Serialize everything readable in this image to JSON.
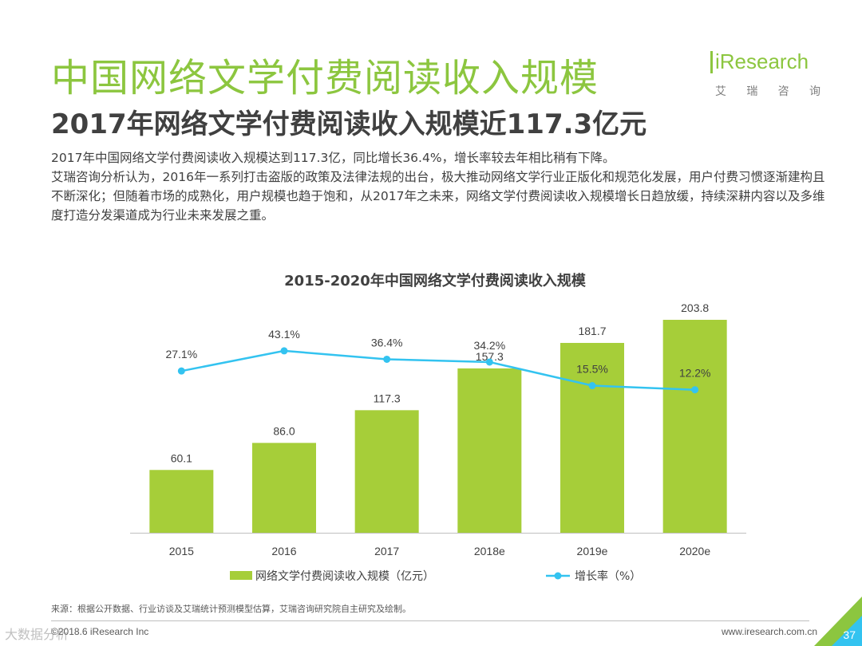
{
  "header": {
    "title": "中国网络文学付费阅读收入规模",
    "subtitle": "2017年网络文学付费阅读收入规模近117.3亿元"
  },
  "description": {
    "line1": "2017年中国网络文学付费阅读收入规模达到117.3亿，同比增长36.4%，增长率较去年相比稍有下降。",
    "line2": "艾瑞咨询分析认为，2016年一系列打击盗版的政策及法律法规的出台，极大推动网络文学行业正版化和规范化发展，用户付费习惯逐渐建构且不断深化；但随着市场的成熟化，用户规模也趋于饱和，从2017年之未来，网络文学付费阅读收入规模增长日趋放缓，持续深耕内容以及多维度打造分发渠道成为行业未来发展之重。"
  },
  "logo": {
    "brand": "iResearch",
    "chars": [
      "艾",
      "瑞",
      "咨",
      "询"
    ]
  },
  "chart_data": {
    "type": "bar",
    "title": "2015-2020年中国网络文学付费阅读收入规模",
    "categories": [
      "2015",
      "2016",
      "2017",
      "2018e",
      "2019e",
      "2020e"
    ],
    "series": [
      {
        "name": "网络文学付费阅读收入规模（亿元）",
        "type": "bar",
        "values": [
          60.1,
          86.0,
          117.3,
          157.3,
          181.7,
          203.8
        ],
        "labels": [
          "60.1",
          "86.0",
          "117.3",
          "157.3",
          "181.7",
          "203.8"
        ],
        "color": "#a6ce39"
      },
      {
        "name": "增长率（%）",
        "type": "line",
        "values": [
          27.1,
          43.1,
          36.4,
          34.2,
          15.5,
          12.2
        ],
        "labels": [
          "27.1%",
          "43.1%",
          "36.4%",
          "34.2%",
          "15.5%",
          "12.2%"
        ],
        "color": "#33c3f0"
      }
    ],
    "legend_position": "bottom",
    "grid": false
  },
  "footer": {
    "source": "来源：根据公开数据、行业访谈及艾瑞统计预测模型估算，艾瑞咨询研究院自主研究及绘制。",
    "copyright": "©2018.6 iResearch Inc",
    "website": "www.iresearch.com.cn",
    "page_number": "37",
    "watermark": "大数据分析"
  },
  "colors": {
    "title_green": "#8cc63f",
    "bar_green": "#a6ce39",
    "line_blue": "#33c3f0",
    "text_dark": "#404040"
  }
}
